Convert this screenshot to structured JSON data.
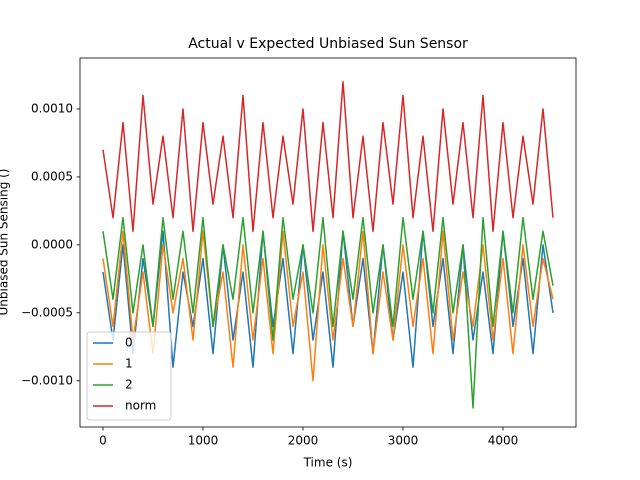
{
  "chart_data": {
    "type": "line",
    "title": "Actual v Expected Unbiased Sun Sensor",
    "xlabel": "Time (s)",
    "ylabel": "Unbiased Sun Sensing ()",
    "x": [
      0,
      100,
      200,
      300,
      400,
      500,
      600,
      700,
      800,
      900,
      1000,
      1100,
      1200,
      1300,
      1400,
      1500,
      1600,
      1700,
      1800,
      1900,
      2000,
      2100,
      2200,
      2300,
      2400,
      2500,
      2600,
      2700,
      2800,
      2900,
      3000,
      3100,
      3200,
      3300,
      3400,
      3500,
      3600,
      3700,
      3800,
      3900,
      4000,
      4100,
      4200,
      4300,
      4400,
      4500
    ],
    "series": [
      {
        "name": "0",
        "color": "#1f77b4",
        "values": [
          -0.0002,
          -0.0007,
          0.0,
          -0.0008,
          -0.0001,
          -0.0006,
          0.0001,
          -0.0009,
          -0.0002,
          -0.0006,
          -0.0001,
          -0.0008,
          0.0,
          -0.0007,
          -0.0002,
          -0.0009,
          0.0001,
          -0.0006,
          -0.0001,
          -0.0008,
          0.0,
          -0.0007,
          -0.0002,
          -0.0009,
          0.0001,
          -0.0006,
          -0.0001,
          -0.0008,
          0.0,
          -0.0007,
          -0.0002,
          -0.0009,
          0.0001,
          -0.0006,
          -0.0001,
          -0.0008,
          0.0,
          -0.0007,
          -0.0002,
          -0.0008,
          0.0001,
          -0.0006,
          -0.0001,
          -0.0008,
          0.0,
          -0.0005
        ]
      },
      {
        "name": "1",
        "color": "#ff7f0e",
        "values": [
          -0.0001,
          -0.0006,
          0.0001,
          -0.0007,
          -0.0002,
          -0.0008,
          0.0,
          -0.0005,
          -0.0001,
          -0.0007,
          0.0001,
          -0.0006,
          -0.0002,
          -0.0009,
          0.0,
          -0.0007,
          -0.0001,
          -0.0008,
          0.0001,
          -0.0006,
          -0.0002,
          -0.001,
          0.0,
          -0.0007,
          -0.0001,
          -0.0006,
          0.0001,
          -0.0008,
          -0.0002,
          -0.0007,
          0.0,
          -0.0006,
          -0.0001,
          -0.0008,
          0.0001,
          -0.0007,
          -0.0002,
          -0.0006,
          0.0,
          -0.0007,
          -0.0001,
          -0.0008,
          0.0,
          -0.0006,
          -0.0001,
          -0.0004
        ]
      },
      {
        "name": "2",
        "color": "#2ca02c",
        "values": [
          0.0001,
          -0.0004,
          0.0002,
          -0.0005,
          0.0,
          -0.0006,
          0.0002,
          -0.0004,
          0.0001,
          -0.0005,
          0.0002,
          -0.0006,
          0.0,
          -0.0004,
          0.0002,
          -0.0005,
          0.0001,
          -0.0007,
          0.0002,
          -0.0004,
          0.0,
          -0.0005,
          0.0002,
          -0.0006,
          0.0001,
          -0.0004,
          0.0002,
          -0.0005,
          0.0,
          -0.0006,
          0.0002,
          -0.0004,
          0.0001,
          -0.0005,
          0.0002,
          -0.0005,
          0.0,
          -0.0012,
          0.0002,
          -0.0006,
          0.0001,
          -0.0005,
          0.0002,
          -0.0004,
          0.0001,
          -0.0003
        ]
      },
      {
        "name": "norm",
        "color": "#d62728",
        "values": [
          0.0007,
          0.0002,
          0.0009,
          0.0001,
          0.0011,
          0.0003,
          0.0008,
          0.0002,
          0.001,
          0.0001,
          0.0009,
          0.0003,
          0.0008,
          0.0002,
          0.0011,
          0.0001,
          0.0009,
          0.0002,
          0.0008,
          0.0003,
          0.001,
          0.0001,
          0.0009,
          0.0002,
          0.0012,
          0.0002,
          0.0008,
          0.0001,
          0.0009,
          0.0003,
          0.0011,
          0.0002,
          0.0008,
          0.0001,
          0.001,
          0.0003,
          0.0009,
          0.0002,
          0.0011,
          0.0001,
          0.0009,
          0.0002,
          0.0008,
          0.0003,
          0.001,
          0.0002
        ]
      }
    ],
    "xlim": [
      -230,
      4730
    ],
    "ylim": [
      -0.00134,
      0.001375
    ],
    "xticks": [
      0,
      1000,
      2000,
      3000,
      4000
    ],
    "yticks": [
      {
        "value": -0.001,
        "label": "−0.0010"
      },
      {
        "value": -0.0005,
        "label": "−0.0005"
      },
      {
        "value": 0,
        "label": "0.0000"
      },
      {
        "value": 0.0005,
        "label": "0.0005"
      },
      {
        "value": 0.001,
        "label": "0.0010"
      }
    ],
    "grid": false,
    "legend": "lower left"
  }
}
